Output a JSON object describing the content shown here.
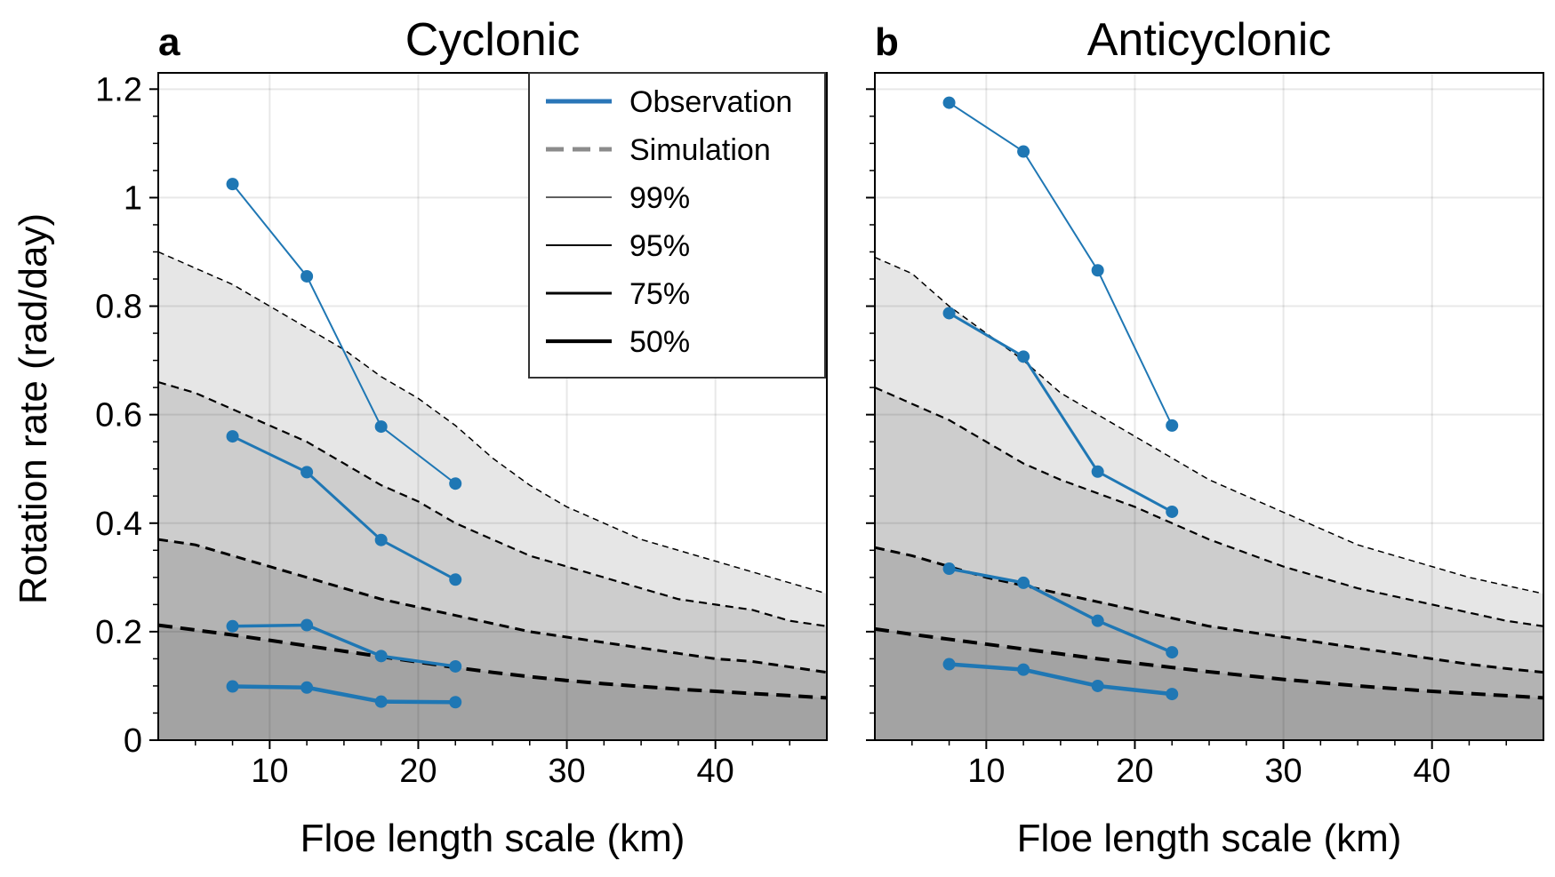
{
  "figure": {
    "ylabel": "Rotation rate (rad/day)",
    "xlabel": "Floe length scale (km)"
  },
  "legend": {
    "entries": [
      {
        "label": "Observation",
        "kind": "observation",
        "color": "#2a76b8"
      },
      {
        "label": "Simulation",
        "kind": "simulation",
        "color": "#8c8c8c"
      },
      {
        "label": "99%",
        "kind": "percentile"
      },
      {
        "label": "95%",
        "kind": "percentile"
      },
      {
        "label": "75%",
        "kind": "percentile"
      },
      {
        "label": "50%",
        "kind": "percentile"
      }
    ]
  },
  "colors": {
    "observation": "#1f77b4",
    "simulation": "#000000",
    "band_99": "#e6e6e6",
    "band_95": "#cdcdcd",
    "band_75": "#b3b3b3",
    "band_50": "#a3a3a3"
  },
  "chart_data": [
    {
      "type": "line",
      "panel_letter": "a",
      "title": "Cyclonic",
      "xlabel": "Floe length scale (km)",
      "ylabel": "Rotation rate (rad/day)",
      "xlim": [
        2.5,
        47.5
      ],
      "ylim": [
        0,
        1.23
      ],
      "xticks": [
        10,
        20,
        30,
        40
      ],
      "yticks": [
        0,
        0.2,
        0.4,
        0.6,
        0.8,
        1.0,
        1.2
      ],
      "ytick_labels": [
        "0",
        "0.2",
        "0.4",
        "0.6",
        "0.8",
        "1",
        "1.2"
      ],
      "grid": true,
      "legend_position": "top-right",
      "simulation": [
        {
          "name": "99%",
          "x": [
            2.5,
            5,
            7.5,
            10,
            12.5,
            15,
            17.5,
            20,
            22.5,
            25,
            27.5,
            30,
            32.5,
            35,
            37.5,
            40,
            42.5,
            45,
            47.5
          ],
          "values": [
            0.9,
            0.87,
            0.84,
            0.8,
            0.76,
            0.72,
            0.67,
            0.63,
            0.58,
            0.52,
            0.47,
            0.43,
            0.4,
            0.37,
            0.35,
            0.33,
            0.31,
            0.29,
            0.27
          ]
        },
        {
          "name": "95%",
          "x": [
            2.5,
            5,
            7.5,
            10,
            12.5,
            15,
            17.5,
            20,
            22.5,
            25,
            27.5,
            30,
            32.5,
            35,
            37.5,
            40,
            42.5,
            45,
            47.5
          ],
          "values": [
            0.66,
            0.64,
            0.61,
            0.58,
            0.55,
            0.51,
            0.47,
            0.44,
            0.4,
            0.37,
            0.34,
            0.32,
            0.3,
            0.28,
            0.26,
            0.25,
            0.24,
            0.22,
            0.21
          ]
        },
        {
          "name": "75%",
          "x": [
            2.5,
            5,
            7.5,
            10,
            12.5,
            15,
            17.5,
            20,
            22.5,
            25,
            27.5,
            30,
            32.5,
            35,
            37.5,
            40,
            42.5,
            45,
            47.5
          ],
          "values": [
            0.37,
            0.36,
            0.34,
            0.32,
            0.3,
            0.28,
            0.26,
            0.245,
            0.23,
            0.215,
            0.2,
            0.19,
            0.18,
            0.17,
            0.16,
            0.15,
            0.145,
            0.135,
            0.125
          ]
        },
        {
          "name": "50%",
          "x": [
            2.5,
            5,
            7.5,
            10,
            12.5,
            15,
            17.5,
            20,
            22.5,
            25,
            27.5,
            30,
            32.5,
            35,
            37.5,
            40,
            42.5,
            45,
            47.5
          ],
          "values": [
            0.212,
            0.203,
            0.194,
            0.184,
            0.174,
            0.164,
            0.154,
            0.144,
            0.134,
            0.125,
            0.117,
            0.11,
            0.104,
            0.099,
            0.094,
            0.09,
            0.086,
            0.082,
            0.078
          ]
        }
      ],
      "observation": [
        {
          "name": "99%",
          "x": [
            7.5,
            12.5,
            17.5,
            22.5
          ],
          "values": [
            1.025,
            0.855,
            0.578,
            0.473
          ]
        },
        {
          "name": "95%",
          "x": [
            7.5,
            12.5,
            17.5,
            22.5
          ],
          "values": [
            0.56,
            0.494,
            0.369,
            0.296
          ]
        },
        {
          "name": "75%",
          "x": [
            7.5,
            12.5,
            17.5,
            22.5
          ],
          "values": [
            0.21,
            0.212,
            0.155,
            0.136
          ]
        },
        {
          "name": "50%",
          "x": [
            7.5,
            12.5,
            17.5,
            22.5
          ],
          "values": [
            0.099,
            0.097,
            0.071,
            0.07
          ]
        }
      ]
    },
    {
      "type": "line",
      "panel_letter": "b",
      "title": "Anticyclonic",
      "xlabel": "Floe length scale (km)",
      "ylabel": "",
      "xlim": [
        2.5,
        47.5
      ],
      "ylim": [
        0,
        1.23
      ],
      "xticks": [
        10,
        20,
        30,
        40
      ],
      "yticks": [
        0,
        0.2,
        0.4,
        0.6,
        0.8,
        1.0,
        1.2
      ],
      "ytick_labels": [],
      "grid": true,
      "simulation": [
        {
          "name": "99%",
          "x": [
            2.5,
            5,
            7.5,
            10,
            12.5,
            15,
            17.5,
            20,
            22.5,
            25,
            27.5,
            30,
            32.5,
            35,
            37.5,
            40,
            42.5,
            45,
            47.5
          ],
          "values": [
            0.89,
            0.86,
            0.8,
            0.75,
            0.7,
            0.64,
            0.6,
            0.56,
            0.52,
            0.48,
            0.45,
            0.42,
            0.39,
            0.36,
            0.34,
            0.32,
            0.3,
            0.285,
            0.27
          ]
        },
        {
          "name": "95%",
          "x": [
            2.5,
            5,
            7.5,
            10,
            12.5,
            15,
            17.5,
            20,
            22.5,
            25,
            27.5,
            30,
            32.5,
            35,
            37.5,
            40,
            42.5,
            45,
            47.5
          ],
          "values": [
            0.65,
            0.62,
            0.59,
            0.55,
            0.51,
            0.48,
            0.455,
            0.43,
            0.4,
            0.37,
            0.345,
            0.32,
            0.3,
            0.28,
            0.265,
            0.25,
            0.235,
            0.22,
            0.21
          ]
        },
        {
          "name": "75%",
          "x": [
            2.5,
            5,
            7.5,
            10,
            12.5,
            15,
            17.5,
            20,
            22.5,
            25,
            27.5,
            30,
            32.5,
            35,
            37.5,
            40,
            42.5,
            45,
            47.5
          ],
          "values": [
            0.355,
            0.34,
            0.32,
            0.3,
            0.285,
            0.27,
            0.255,
            0.24,
            0.225,
            0.21,
            0.2,
            0.19,
            0.18,
            0.17,
            0.16,
            0.15,
            0.14,
            0.132,
            0.125
          ]
        },
        {
          "name": "50%",
          "x": [
            2.5,
            5,
            7.5,
            10,
            12.5,
            15,
            17.5,
            20,
            22.5,
            25,
            27.5,
            30,
            32.5,
            35,
            37.5,
            40,
            42.5,
            45,
            47.5
          ],
          "values": [
            0.205,
            0.195,
            0.186,
            0.177,
            0.168,
            0.159,
            0.15,
            0.142,
            0.134,
            0.126,
            0.119,
            0.112,
            0.106,
            0.1,
            0.095,
            0.09,
            0.086,
            0.082,
            0.078
          ]
        }
      ],
      "observation": [
        {
          "name": "99%",
          "x": [
            7.5,
            12.5,
            17.5,
            22.5
          ],
          "values": [
            1.175,
            1.085,
            0.866,
            0.58
          ]
        },
        {
          "name": "95%",
          "x": [
            7.5,
            12.5,
            17.5,
            22.5
          ],
          "values": [
            0.787,
            0.707,
            0.495,
            0.421
          ]
        },
        {
          "name": "75%",
          "x": [
            7.5,
            12.5,
            17.5,
            22.5
          ],
          "values": [
            0.316,
            0.29,
            0.22,
            0.162
          ]
        },
        {
          "name": "50%",
          "x": [
            7.5,
            12.5,
            17.5,
            22.5
          ],
          "values": [
            0.14,
            0.13,
            0.1,
            0.085
          ]
        }
      ]
    }
  ]
}
